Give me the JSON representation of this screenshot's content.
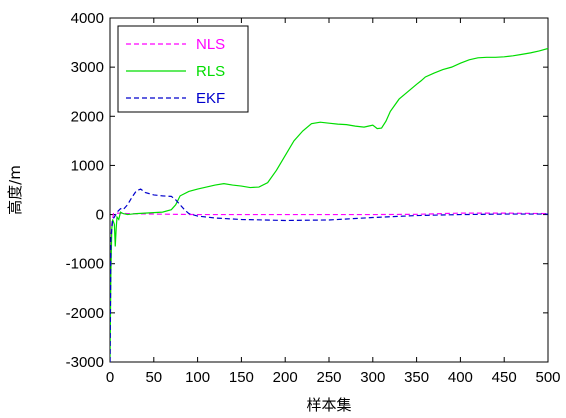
{
  "chart_data": {
    "type": "line",
    "xlabel": "样本集",
    "ylabel": "高度/m",
    "xlim": [
      0,
      500
    ],
    "ylim": [
      -3000,
      4000
    ],
    "xticks": [
      0,
      50,
      100,
      150,
      200,
      250,
      300,
      350,
      400,
      450,
      500
    ],
    "yticks": [
      -3000,
      -2000,
      -1000,
      0,
      1000,
      2000,
      3000,
      4000
    ],
    "grid": false,
    "legend_position": "top-left",
    "series": [
      {
        "name": "NLS",
        "color": "#ff00ff",
        "style": "dashed",
        "points": [
          [
            0,
            -3000
          ],
          [
            1,
            -800
          ],
          [
            2,
            -200
          ],
          [
            4,
            20
          ],
          [
            8,
            30
          ],
          [
            20,
            20
          ],
          [
            50,
            10
          ],
          [
            100,
            0
          ],
          [
            150,
            0
          ],
          [
            200,
            0
          ],
          [
            250,
            0
          ],
          [
            300,
            0
          ],
          [
            350,
            5
          ],
          [
            400,
            30
          ],
          [
            450,
            30
          ],
          [
            500,
            20
          ]
        ]
      },
      {
        "name": "RLS",
        "color": "#00dd00",
        "style": "solid",
        "points": [
          [
            0,
            -3000
          ],
          [
            1,
            -1200
          ],
          [
            2,
            -300
          ],
          [
            3,
            -100
          ],
          [
            5,
            -200
          ],
          [
            6,
            -650
          ],
          [
            7,
            -300
          ],
          [
            8,
            -50
          ],
          [
            10,
            -100
          ],
          [
            12,
            50
          ],
          [
            15,
            20
          ],
          [
            20,
            0
          ],
          [
            30,
            20
          ],
          [
            40,
            30
          ],
          [
            50,
            40
          ],
          [
            60,
            50
          ],
          [
            70,
            100
          ],
          [
            75,
            200
          ],
          [
            80,
            380
          ],
          [
            90,
            470
          ],
          [
            100,
            520
          ],
          [
            110,
            560
          ],
          [
            120,
            600
          ],
          [
            130,
            630
          ],
          [
            140,
            600
          ],
          [
            150,
            580
          ],
          [
            160,
            550
          ],
          [
            170,
            560
          ],
          [
            180,
            650
          ],
          [
            190,
            900
          ],
          [
            200,
            1200
          ],
          [
            210,
            1500
          ],
          [
            220,
            1700
          ],
          [
            230,
            1850
          ],
          [
            240,
            1880
          ],
          [
            250,
            1860
          ],
          [
            260,
            1840
          ],
          [
            270,
            1830
          ],
          [
            280,
            1800
          ],
          [
            290,
            1780
          ],
          [
            295,
            1800
          ],
          [
            300,
            1820
          ],
          [
            305,
            1750
          ],
          [
            310,
            1760
          ],
          [
            315,
            1900
          ],
          [
            320,
            2100
          ],
          [
            330,
            2350
          ],
          [
            340,
            2500
          ],
          [
            350,
            2650
          ],
          [
            355,
            2720
          ],
          [
            360,
            2800
          ],
          [
            370,
            2880
          ],
          [
            380,
            2950
          ],
          [
            390,
            3000
          ],
          [
            400,
            3080
          ],
          [
            410,
            3150
          ],
          [
            420,
            3190
          ],
          [
            430,
            3200
          ],
          [
            440,
            3200
          ],
          [
            450,
            3210
          ],
          [
            460,
            3230
          ],
          [
            470,
            3260
          ],
          [
            480,
            3290
          ],
          [
            490,
            3330
          ],
          [
            500,
            3380
          ]
        ]
      },
      {
        "name": "EKF",
        "color": "#0000cc",
        "style": "dashed",
        "points": [
          [
            0,
            -3000
          ],
          [
            1,
            -500
          ],
          [
            3,
            -100
          ],
          [
            5,
            -50
          ],
          [
            8,
            50
          ],
          [
            12,
            120
          ],
          [
            15,
            100
          ],
          [
            20,
            200
          ],
          [
            25,
            350
          ],
          [
            30,
            480
          ],
          [
            35,
            520
          ],
          [
            40,
            450
          ],
          [
            50,
            400
          ],
          [
            60,
            380
          ],
          [
            70,
            370
          ],
          [
            75,
            300
          ],
          [
            80,
            200
          ],
          [
            85,
            100
          ],
          [
            90,
            20
          ],
          [
            100,
            -30
          ],
          [
            120,
            -70
          ],
          [
            150,
            -100
          ],
          [
            200,
            -120
          ],
          [
            250,
            -110
          ],
          [
            300,
            -60
          ],
          [
            350,
            -20
          ],
          [
            400,
            0
          ],
          [
            450,
            10
          ],
          [
            500,
            10
          ]
        ]
      }
    ]
  }
}
